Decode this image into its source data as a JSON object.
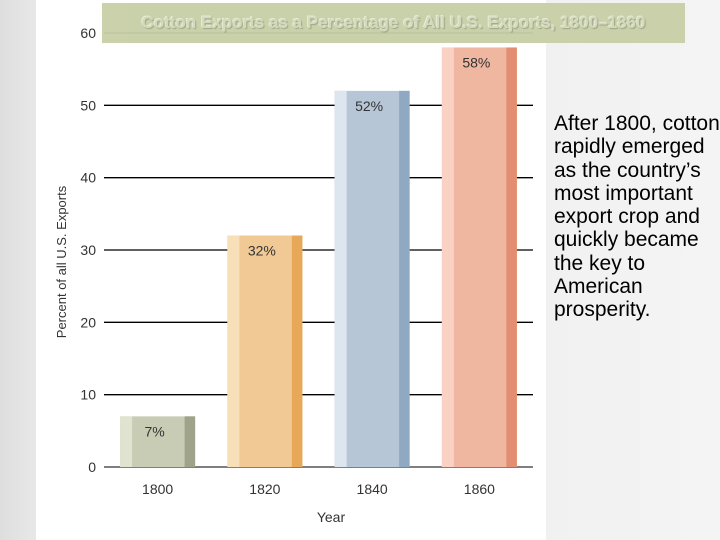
{
  "slide": {
    "body_text": "After 1800, cotton rapidly emerged as the country’s most important export crop and quickly became the key to American prosperity."
  },
  "chart_data": {
    "type": "bar",
    "title": "Cotton Exports as a Percentage of All U.S. Exports, 1800–1860",
    "xlabel": "Year",
    "ylabel": "Percent of all U.S. Exports",
    "categories": [
      "1800",
      "1820",
      "1840",
      "1860"
    ],
    "values": [
      7,
      32,
      52,
      58
    ],
    "data_labels": [
      "7%",
      "32%",
      "52%",
      "58%"
    ],
    "yticks": [
      "0",
      "10",
      "20",
      "30",
      "40",
      "50",
      "60"
    ],
    "ylim": [
      0,
      60
    ],
    "grid": true,
    "legend": "none",
    "bar_colors": [
      {
        "light": "#dfe3d0",
        "mid": "#c8ccb4",
        "dark": "#9fa38a"
      },
      {
        "light": "#f8dfb8",
        "mid": "#f1c994",
        "dark": "#e8a85a"
      },
      {
        "light": "#dde5ee",
        "mid": "#b6c6d6",
        "dark": "#8fa9c2"
      },
      {
        "light": "#f9d2c4",
        "mid": "#efb6a0",
        "dark": "#e38e72"
      }
    ]
  }
}
